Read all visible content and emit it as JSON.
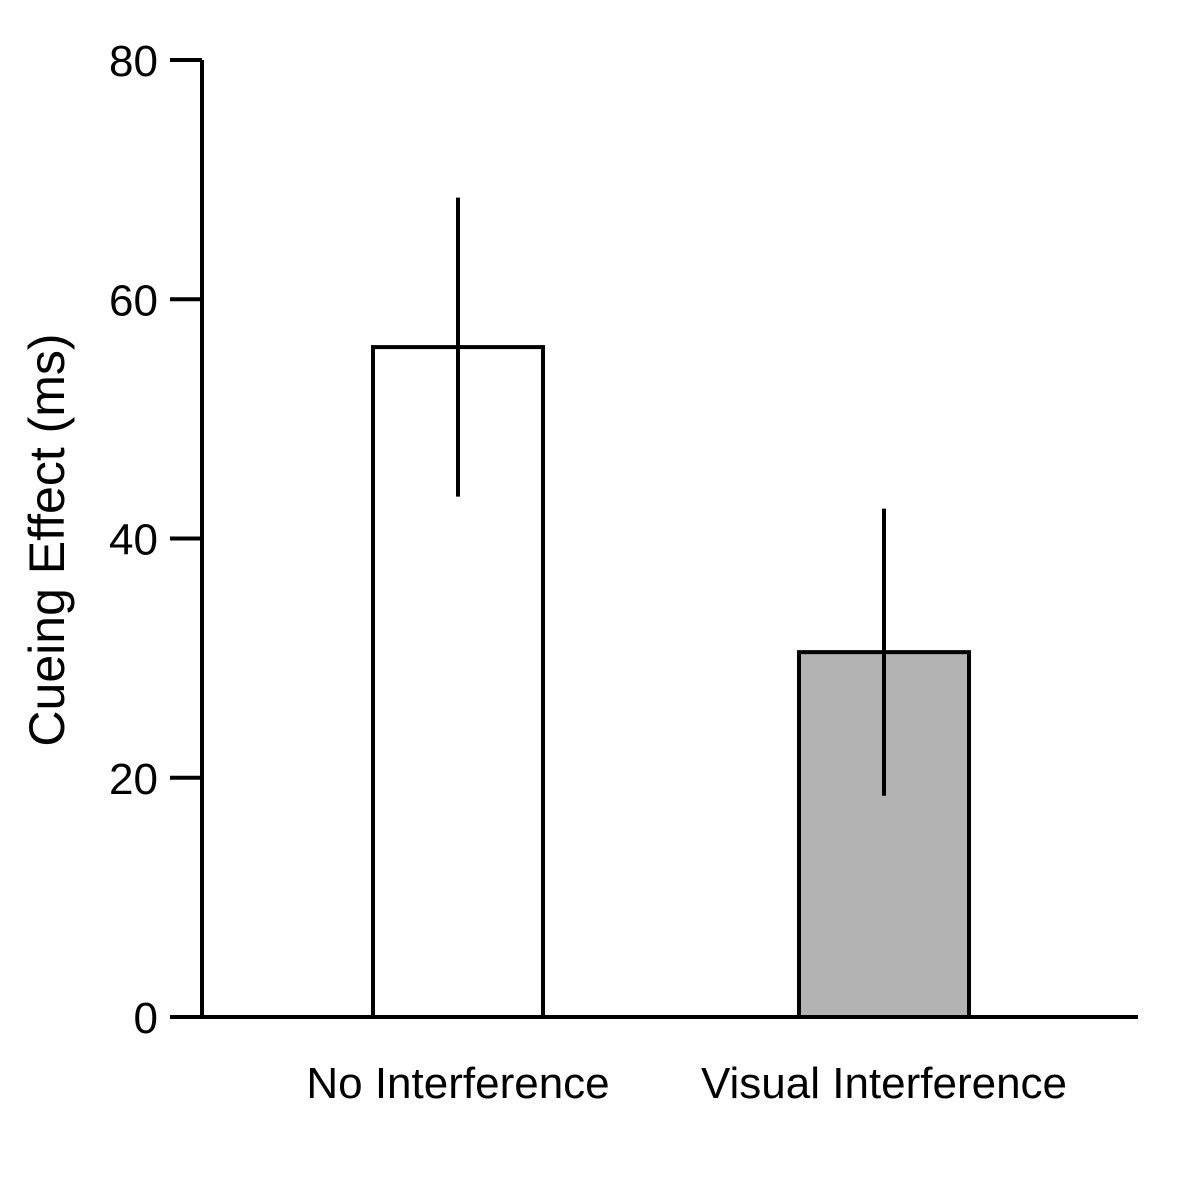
{
  "chart_data": {
    "type": "bar",
    "categories": [
      "No Interference",
      "Visual Interference"
    ],
    "values": [
      56,
      30.5
    ],
    "error_low": [
      43.5,
      18.5
    ],
    "error_high": [
      68.5,
      42.5
    ],
    "bar_colors": [
      "#ffffff",
      "#b3b3b3"
    ],
    "title": "",
    "xlabel": "",
    "ylabel": "Cueing Effect (ms)",
    "ylim": [
      0,
      80
    ],
    "yticks": [
      "0",
      "20",
      "40",
      "60",
      "80"
    ],
    "grid": false
  }
}
